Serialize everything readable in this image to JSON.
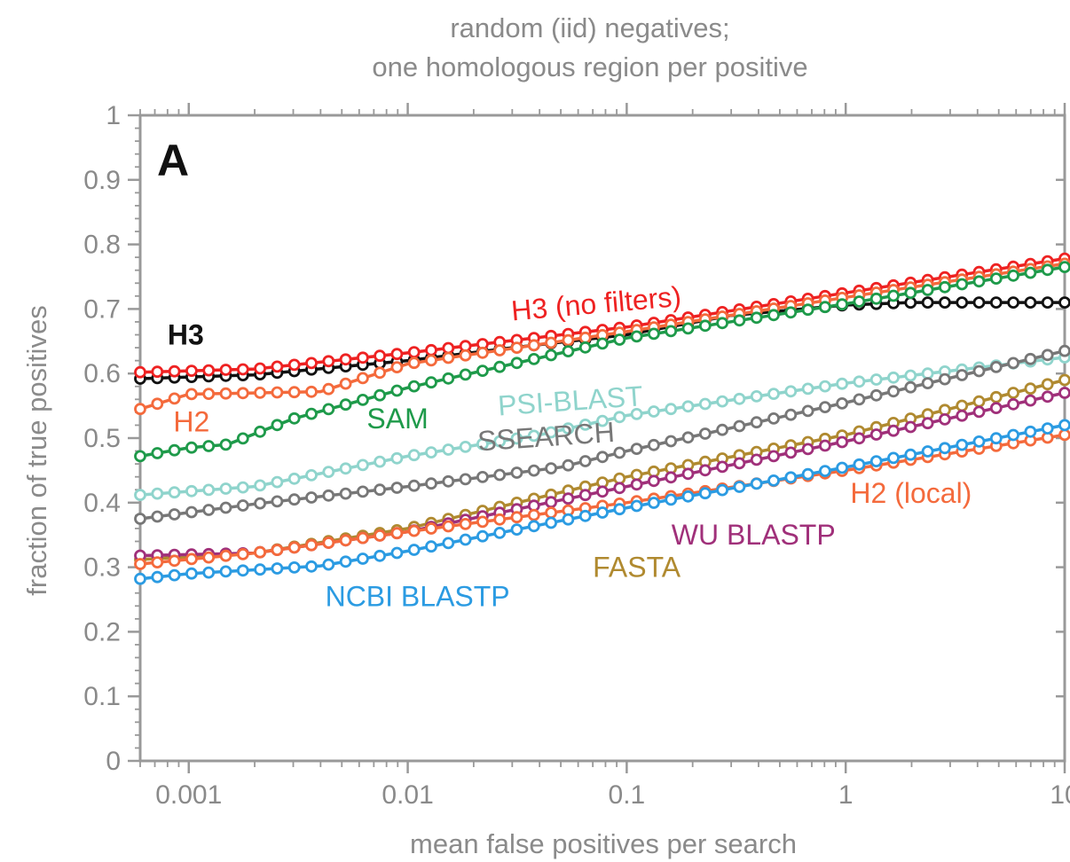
{
  "chart_data": {
    "type": "line",
    "title": [
      "random (iid) negatives;",
      "one homologous region per positive"
    ],
    "panel_label": "A",
    "xlabel": "mean false positives per search",
    "ylabel": "fraction of true positives",
    "xscale": "log",
    "xlim": [
      0.0006,
      10
    ],
    "ylim": [
      0,
      1
    ],
    "xticks": [
      0.001,
      0.01,
      0.1,
      1,
      10
    ],
    "xtick_labels": [
      "0.001",
      "0.01",
      "0.1",
      "1",
      "10"
    ],
    "yticks": [
      0,
      0.1,
      0.2,
      0.3,
      0.4,
      0.5,
      0.6,
      0.7,
      0.8,
      0.9,
      1
    ],
    "ytick_labels": [
      "0",
      "0.1",
      "0.2",
      "0.3",
      "0.4",
      "0.5",
      "0.6",
      "0.7",
      "0.8",
      "0.9",
      "1"
    ],
    "grid": false,
    "legend": "inline labels",
    "series": [
      {
        "name": "H3",
        "color": "#111111",
        "label_x": 0.0008,
        "label_y": 0.645,
        "label_weight": "bold",
        "points": [
          [
            0.0006,
            0.592
          ],
          [
            0.002,
            0.598
          ],
          [
            0.01,
            0.62
          ],
          [
            0.03,
            0.64
          ],
          [
            0.1,
            0.66
          ],
          [
            0.3,
            0.69
          ],
          [
            1,
            0.706
          ],
          [
            2,
            0.71
          ],
          [
            10,
            0.71
          ]
        ]
      },
      {
        "name": "H3 (no filters)",
        "color": "#ee2222",
        "label_x": 0.03,
        "label_y": 0.682,
        "label_rotate": -5,
        "points": [
          [
            0.0006,
            0.602
          ],
          [
            0.002,
            0.607
          ],
          [
            0.01,
            0.632
          ],
          [
            0.1,
            0.672
          ],
          [
            1,
            0.725
          ],
          [
            10,
            0.778
          ]
        ]
      },
      {
        "name": "H2",
        "color": "#f46a3c",
        "label_x": 0.00085,
        "label_y": 0.51,
        "points": [
          [
            0.0006,
            0.545
          ],
          [
            0.001,
            0.568
          ],
          [
            0.004,
            0.572
          ],
          [
            0.01,
            0.615
          ],
          [
            0.1,
            0.665
          ],
          [
            1,
            0.718
          ],
          [
            10,
            0.77
          ]
        ]
      },
      {
        "name": "SAM",
        "color": "#1e9a4a",
        "label_x": 0.0065,
        "label_y": 0.515,
        "points": [
          [
            0.0006,
            0.472
          ],
          [
            0.001,
            0.485
          ],
          [
            0.0015,
            0.49
          ],
          [
            0.003,
            0.53
          ],
          [
            0.01,
            0.578
          ],
          [
            0.1,
            0.655
          ],
          [
            1,
            0.708
          ],
          [
            10,
            0.765
          ]
        ]
      },
      {
        "name": "PSI-BLAST",
        "color": "#8fd4cc",
        "label_x": 0.026,
        "label_y": 0.535,
        "label_rotate": -4,
        "points": [
          [
            0.0006,
            0.412
          ],
          [
            0.002,
            0.425
          ],
          [
            0.01,
            0.472
          ],
          [
            0.04,
            0.505
          ],
          [
            0.1,
            0.535
          ],
          [
            1,
            0.585
          ],
          [
            10,
            0.625
          ]
        ]
      },
      {
        "name": "SSEARCH",
        "color": "#777777",
        "label_x": 0.021,
        "label_y": 0.48,
        "label_rotate": -4,
        "points": [
          [
            0.0006,
            0.375
          ],
          [
            0.002,
            0.398
          ],
          [
            0.01,
            0.425
          ],
          [
            0.05,
            0.455
          ],
          [
            0.1,
            0.48
          ],
          [
            1,
            0.555
          ],
          [
            10,
            0.635
          ]
        ]
      },
      {
        "name": "FASTA",
        "color": "#b08a30",
        "label_x": 0.07,
        "label_y": 0.285,
        "points": [
          [
            0.0006,
            0.312
          ],
          [
            0.002,
            0.322
          ],
          [
            0.01,
            0.36
          ],
          [
            0.1,
            0.44
          ],
          [
            1,
            0.505
          ],
          [
            10,
            0.59
          ]
        ]
      },
      {
        "name": "WU BLASTP",
        "color": "#a0307a",
        "label_x": 0.16,
        "label_y": 0.335,
        "points": [
          [
            0.0006,
            0.318
          ],
          [
            0.002,
            0.322
          ],
          [
            0.01,
            0.355
          ],
          [
            0.1,
            0.425
          ],
          [
            1,
            0.495
          ],
          [
            10,
            0.57
          ]
        ]
      },
      {
        "name": "H2 (local)",
        "color": "#f46a3c",
        "label_x": 1.05,
        "label_y": 0.4,
        "points": [
          [
            0.0006,
            0.305
          ],
          [
            0.002,
            0.322
          ],
          [
            0.01,
            0.355
          ],
          [
            0.1,
            0.4
          ],
          [
            1,
            0.45
          ],
          [
            10,
            0.505
          ]
        ]
      },
      {
        "name": "NCBI BLASTP",
        "color": "#2b9be2",
        "label_x": 0.0042,
        "label_y": 0.24,
        "points": [
          [
            0.0006,
            0.282
          ],
          [
            0.001,
            0.29
          ],
          [
            0.004,
            0.302
          ],
          [
            0.01,
            0.325
          ],
          [
            0.1,
            0.392
          ],
          [
            1,
            0.455
          ],
          [
            10,
            0.52
          ]
        ]
      }
    ]
  }
}
